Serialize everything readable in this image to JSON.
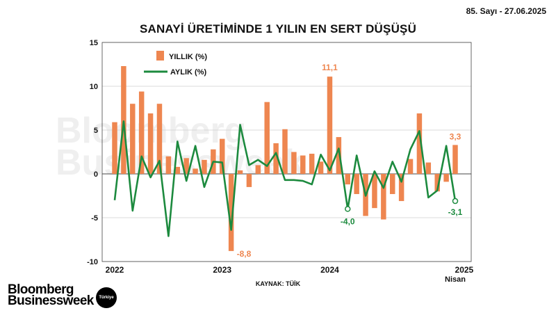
{
  "issue_info": "85. Sayı - 27.06.2025",
  "source": "KAYNAK: TÜİK",
  "brand": {
    "line1": "Bloomberg",
    "line2": "Businessweek",
    "badge": "Türkiye"
  },
  "colors": {
    "bar": "#ee8650",
    "line": "#1c8a3e",
    "grid": "#cfcfcf",
    "text": "#111111"
  },
  "chart_data": {
    "type": "bar+line",
    "title": "SANAYİ ÜRETİMİNDE 1 YILIN EN SERT DÜŞÜŞÜ",
    "xlabel": "",
    "ylabel": "",
    "ylim": [
      -10,
      15
    ],
    "yticks": [
      -10,
      -5,
      0,
      5,
      10,
      15
    ],
    "ytick_labels": [
      "-10",
      "-5",
      "0",
      "5",
      "10",
      "15"
    ],
    "x_tick_labels": [
      {
        "index": 0,
        "label": "2022"
      },
      {
        "index": 12,
        "label": "2023"
      },
      {
        "index": 24,
        "label": "2024"
      },
      {
        "index": 39,
        "label": "2025"
      }
    ],
    "last_period_label": "Nisan",
    "legend": [
      {
        "name": "YILLIK (%)",
        "kind": "bar"
      },
      {
        "name": "AYLIK (%)",
        "kind": "line"
      }
    ],
    "series": [
      {
        "name": "YILLIK (%)",
        "kind": "bar",
        "values": [
          5.9,
          12.3,
          8.0,
          9.4,
          6.9,
          8.0,
          2.0,
          0.8,
          1.8,
          0.6,
          1.6,
          2.8,
          4.0,
          -8.8,
          0.4,
          -1.5,
          1.0,
          8.2,
          3.5,
          5.1,
          2.5,
          2.1,
          2.3,
          1.4,
          11.1,
          4.2,
          -1.2,
          -2.3,
          -4.8,
          -3.9,
          -5.2,
          -2.3,
          -3.1,
          1.7,
          6.9,
          1.3,
          -2.0,
          -0.9,
          3.3
        ]
      },
      {
        "name": "AYLIK (%)",
        "kind": "line",
        "values": [
          -3.0,
          6.0,
          -4.2,
          2.0,
          -0.4,
          1.5,
          -7.1,
          3.7,
          -0.8,
          3.2,
          -1.5,
          1.4,
          1.3,
          -6.4,
          5.6,
          1.0,
          1.6,
          0.9,
          2.4,
          -0.7,
          -0.7,
          -0.8,
          -1.2,
          2.2,
          0.4,
          2.9,
          -4.0,
          2.1,
          -2.5,
          0.3,
          -1.6,
          1.4,
          -0.9,
          2.8,
          4.9,
          -2.7,
          -1.9,
          3.2,
          -3.1
        ]
      }
    ],
    "annotations": [
      {
        "series": "YILLIK (%)",
        "index": 13,
        "text": "-8,8"
      },
      {
        "series": "YILLIK (%)",
        "index": 24,
        "text": "11,1"
      },
      {
        "series": "YILLIK (%)",
        "index": 38,
        "text": "3,3"
      },
      {
        "series": "AYLIK (%)",
        "index": 26,
        "text": "-4,0"
      },
      {
        "series": "AYLIK (%)",
        "index": 38,
        "text": "-3,1"
      }
    ]
  }
}
